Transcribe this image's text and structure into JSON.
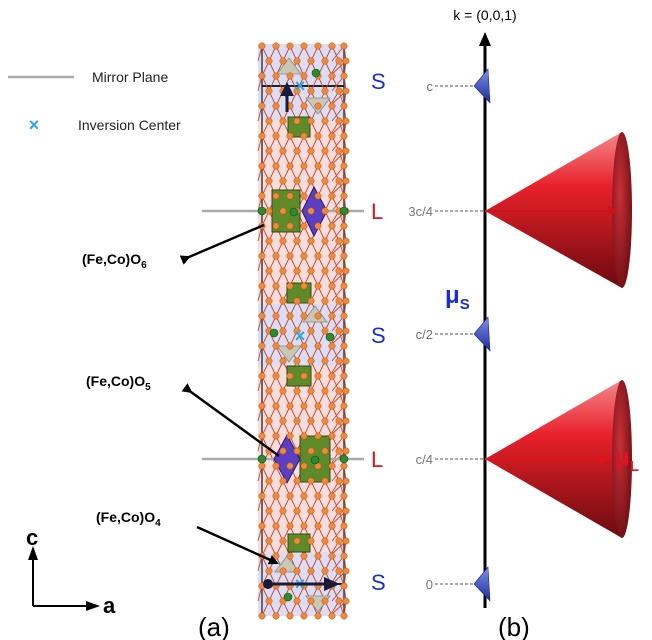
{
  "legend": {
    "mirror_plane": "Mirror Plane",
    "inversion_center": "Inversion Center"
  },
  "axes": {
    "c": "c",
    "a": "a"
  },
  "panels": {
    "a": "(a)",
    "b": "(b)"
  },
  "polyhedra": {
    "o6": {
      "base": "(Fe,Co)O",
      "sub": "6"
    },
    "o5": {
      "base": "(Fe,Co)O",
      "sub": "5"
    },
    "o4": {
      "base": "(Fe,Co)O",
      "sub": "4"
    }
  },
  "block_labels": [
    "S",
    "L",
    "S",
    "L",
    "S"
  ],
  "k_vector": "k = (0,0,1)",
  "positions": [
    "c",
    "3c/4",
    "c/2",
    "c/4",
    "0"
  ],
  "moments": {
    "mu_s": {
      "base": "μ",
      "sub": "S"
    },
    "mu_l": {
      "base": "μ",
      "sub": "L"
    }
  },
  "colors": {
    "s_block": "#dcdcf5",
    "l_block": "#f9dcdc",
    "cone_red": "#e8202a",
    "small_cone_blue": "#3a4bc0",
    "label_blue": "#1a2fd0",
    "label_red": "#e0141e",
    "inversion_marker": "#29a8e0",
    "octahedra_green": "#5e8a2a",
    "tbp_purple": "#5b3fc0"
  }
}
